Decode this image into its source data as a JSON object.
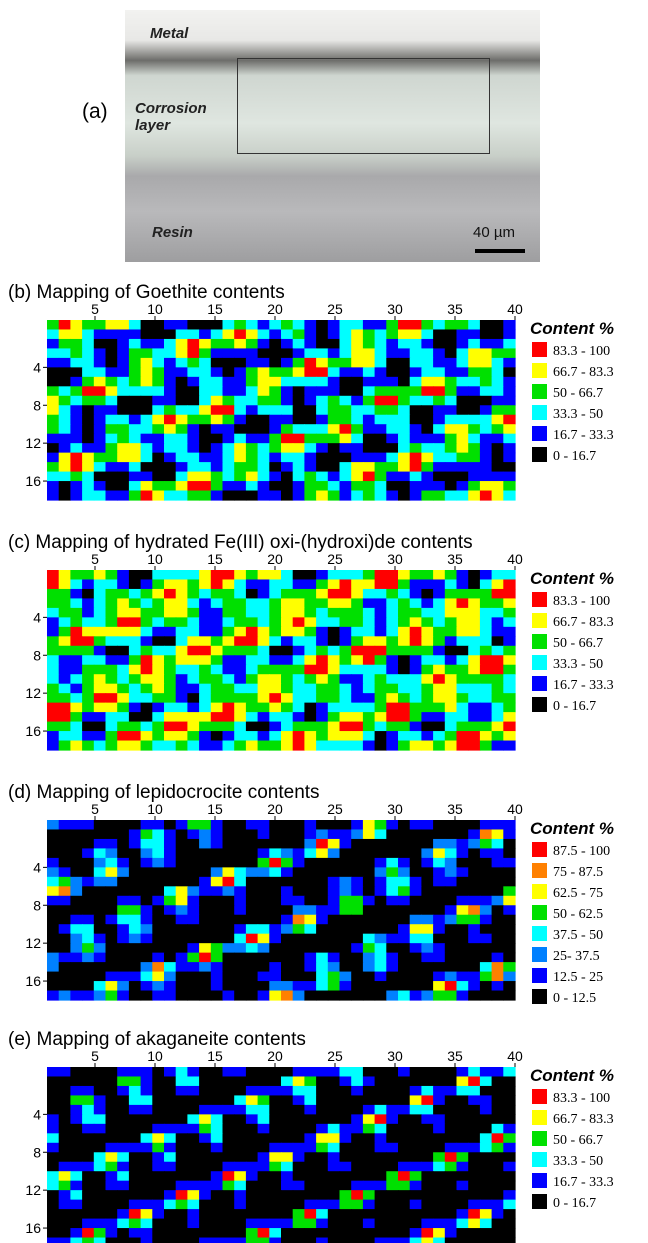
{
  "panel_a": {
    "label": "(a)",
    "regions": [
      "Metal",
      "Corrosion layer",
      "Resin"
    ],
    "scale_bar": "40 µm"
  },
  "maps": [
    {
      "title": "(b) Mapping of Goethite contents",
      "xlim": [
        1,
        40
      ],
      "ylim": [
        -1,
        18
      ],
      "xticks": [
        5,
        10,
        15,
        20,
        25,
        30,
        35,
        40
      ],
      "yticks": [
        4,
        8,
        12,
        16
      ],
      "legend_title": "Content %",
      "legend": [
        {
          "label": "83.3 - 100",
          "color": "#ff0000"
        },
        {
          "label": "66.7 - 83.3",
          "color": "#ffff00"
        },
        {
          "label": "50 - 66.7",
          "color": "#00e000"
        },
        {
          "label": "33.3 - 50",
          "color": "#00ffff"
        },
        {
          "label": "16.7 - 33.3",
          "color": "#0000ff"
        },
        {
          "label": "0 - 16.7",
          "color": "#000000"
        }
      ]
    },
    {
      "title": "(c) Mapping of hydrated Fe(III) oxi-(hydroxi)de contents",
      "xlim": [
        1,
        40
      ],
      "ylim": [
        -1,
        18
      ],
      "xticks": [
        5,
        10,
        15,
        20,
        25,
        30,
        35,
        40
      ],
      "yticks": [
        4,
        8,
        12,
        16
      ],
      "legend_title": "Content %",
      "legend": [
        {
          "label": "83.3 - 100",
          "color": "#ff0000"
        },
        {
          "label": "66.7 - 83.3",
          "color": "#ffff00"
        },
        {
          "label": "50 - 66.7",
          "color": "#00e000"
        },
        {
          "label": "33.3 - 50",
          "color": "#00ffff"
        },
        {
          "label": "16.7 - 33.3",
          "color": "#0000ff"
        },
        {
          "label": "0 - 16.7",
          "color": "#000000"
        }
      ]
    },
    {
      "title": "(d) Mapping of lepidocrocite contents",
      "xlim": [
        1,
        40
      ],
      "ylim": [
        -1,
        18
      ],
      "xticks": [
        5,
        10,
        15,
        20,
        25,
        30,
        35,
        40
      ],
      "yticks": [
        4,
        8,
        12,
        16
      ],
      "legend_title": "Content %",
      "legend": [
        {
          "label": "87.5 - 100",
          "color": "#ff0000"
        },
        {
          "label": "75 - 87.5",
          "color": "#ff8000"
        },
        {
          "label": "62.5 - 75",
          "color": "#ffff00"
        },
        {
          "label": "50 - 62.5",
          "color": "#00e000"
        },
        {
          "label": "37.5 - 50",
          "color": "#00ffff"
        },
        {
          "label": "25- 37.5",
          "color": "#0080ff"
        },
        {
          "label": "12.5 - 25",
          "color": "#0000ff"
        },
        {
          "label": "0 - 12.5",
          "color": "#000000"
        }
      ]
    },
    {
      "title": "(e) Mapping of akaganeite contents",
      "xlim": [
        1,
        40
      ],
      "ylim": [
        -1,
        18
      ],
      "xticks": [
        5,
        10,
        15,
        20,
        25,
        30,
        35,
        40
      ],
      "yticks": [
        4,
        8,
        12,
        16
      ],
      "legend_title": "Content %",
      "legend": [
        {
          "label": "83.3 - 100",
          "color": "#ff0000"
        },
        {
          "label": "66.7 - 83.3",
          "color": "#ffff00"
        },
        {
          "label": "50 - 66.7",
          "color": "#00e000"
        },
        {
          "label": "33.3 - 50",
          "color": "#00ffff"
        },
        {
          "label": "16.7 - 33.3",
          "color": "#0000ff"
        },
        {
          "label": "0 - 16.7",
          "color": "#000000"
        }
      ]
    }
  ]
}
